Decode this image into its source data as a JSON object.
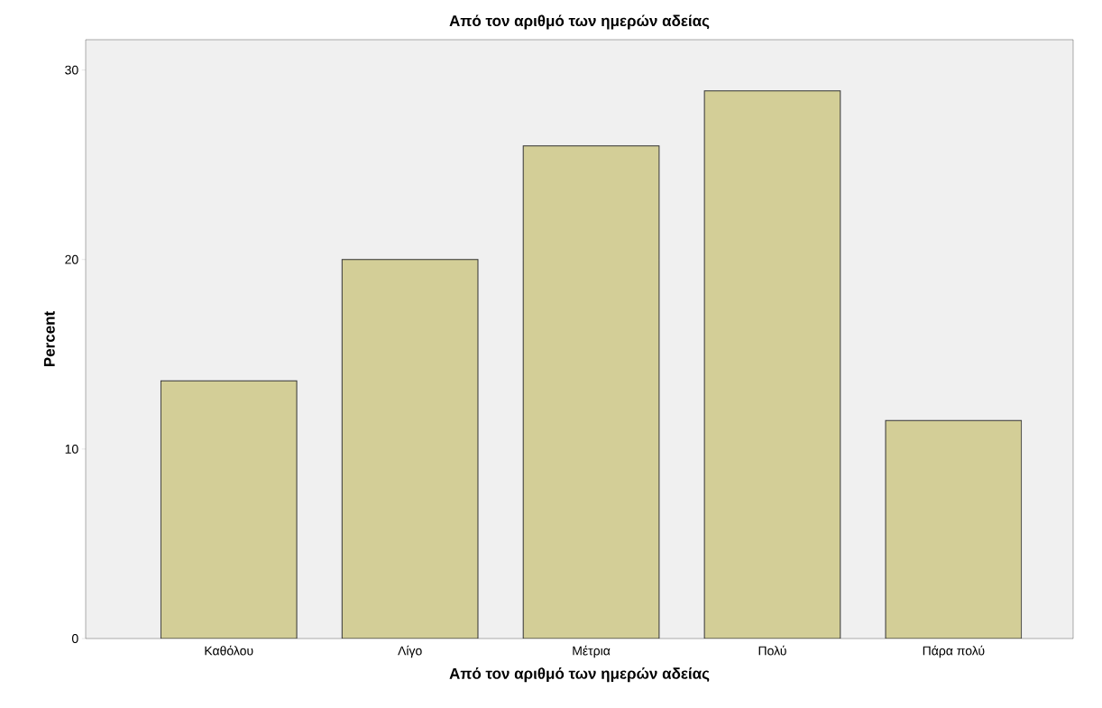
{
  "chart_data": {
    "type": "bar",
    "title": "Από τον αριθμό των ημερών αδείας",
    "xlabel": "Από τον αριθμό των ημερών αδείας",
    "ylabel": "Percent",
    "categories": [
      "Καθόλου",
      "Λίγο",
      "Μέτρια",
      "Πολύ",
      "Πάρα πολύ"
    ],
    "values": [
      13.6,
      20.0,
      26.0,
      28.9,
      11.5
    ],
    "color": "#d3ce97",
    "ylim": [
      0,
      31.6
    ],
    "yticks": [
      0,
      10,
      20,
      30
    ],
    "grid": false
  }
}
